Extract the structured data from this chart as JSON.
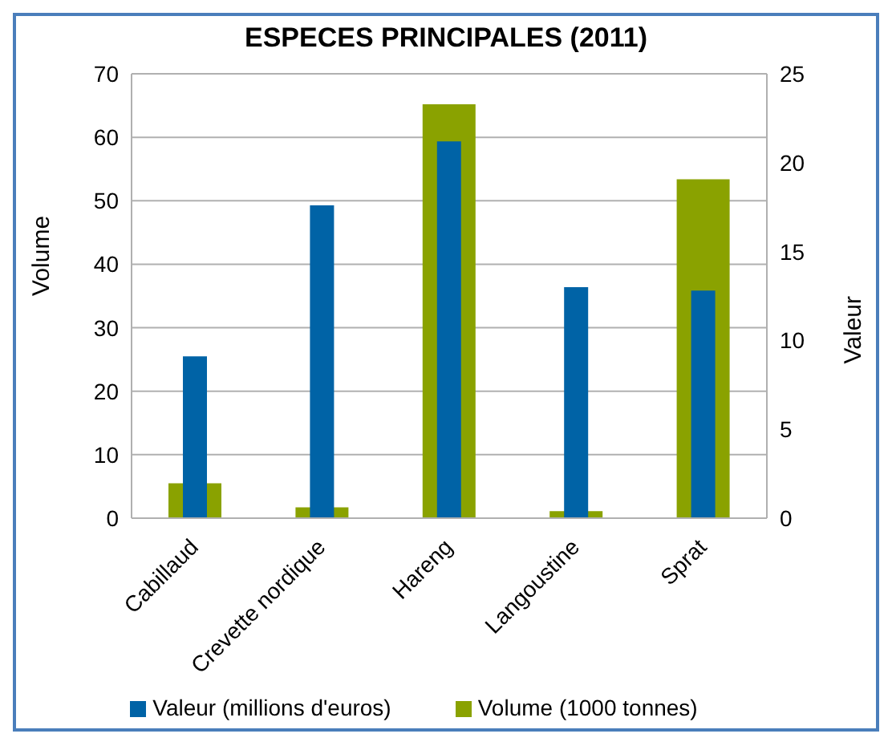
{
  "chart_data": {
    "type": "bar",
    "title": "ESPECES PRINCIPALES (2011)",
    "ylabel": "Volume",
    "y2label": "Valeur",
    "categories": [
      "Cabillaud",
      "Crevette nordique",
      "Hareng",
      "Langoustine",
      "Sprat"
    ],
    "series": [
      {
        "name": "Volume (1000 tonnes)",
        "color": "#8aa200",
        "values": [
          5.5,
          1.7,
          65.2,
          1.1,
          53.4
        ]
      },
      {
        "name": "Valeur (millions d'euros)",
        "color": "#0063a6",
        "values": [
          9.1,
          17.6,
          21.2,
          13.0,
          12.8
        ],
        "axis": "y2"
      }
    ],
    "ylim": [
      0,
      70
    ],
    "yticks": [
      0,
      10,
      20,
      30,
      40,
      50,
      60,
      70
    ],
    "y2lim": [
      0,
      25
    ],
    "y2ticks": [
      0,
      5,
      10,
      15,
      20,
      25
    ],
    "grid": "y",
    "legend": "bottom"
  }
}
